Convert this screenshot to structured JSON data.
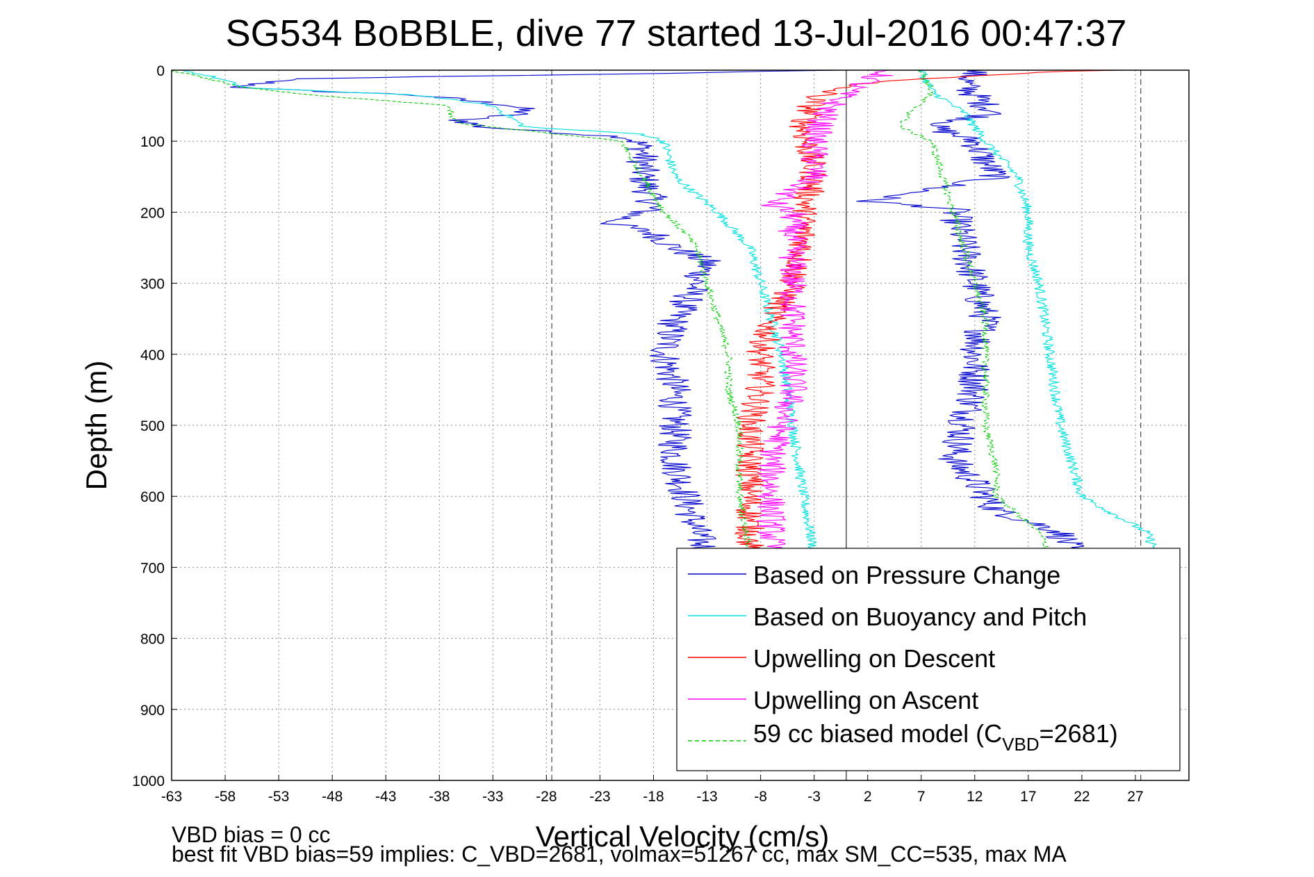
{
  "chart_data": {
    "type": "line",
    "title": "SG534 BoBBLE, dive 77 started 13-Jul-2016 00:47:37",
    "xlabel": "Vertical Velocity (cm/s)",
    "ylabel": "Depth (m)",
    "xlim": [
      -63,
      32
    ],
    "ylim": [
      0,
      1000
    ],
    "y_reversed": true,
    "grid": true,
    "legend_position": "bottom-right",
    "xticks": [
      "-63",
      "-58",
      "-53",
      "-48",
      "-43",
      "-38",
      "-33",
      "-28",
      "-23",
      "-18",
      "-13",
      "-8",
      "-3",
      "2",
      "7",
      "12",
      "17",
      "22",
      "27"
    ],
    "yticks": [
      "0",
      "100",
      "200",
      "300",
      "400",
      "500",
      "600",
      "700",
      "800",
      "900",
      "1000"
    ],
    "reference_lines": [
      {
        "x": 0,
        "style": "solid"
      },
      {
        "x": -27.5,
        "style": "dashed"
      },
      {
        "x": 27.5,
        "style": "dashed"
      }
    ],
    "series": [
      {
        "name": "Based on Pressure Change",
        "color": "#0000cc",
        "style": "solid",
        "descent": [
          [
            0,
            -1
          ],
          [
            5,
            -20
          ],
          [
            12,
            -52
          ],
          [
            25,
            -57
          ],
          [
            35,
            -40
          ],
          [
            50,
            -31
          ],
          [
            60,
            -30
          ],
          [
            70,
            -36
          ],
          [
            80,
            -34
          ],
          [
            95,
            -20
          ],
          [
            110,
            -19
          ],
          [
            150,
            -19
          ],
          [
            190,
            -18
          ],
          [
            200,
            -19
          ],
          [
            215,
            -22
          ],
          [
            230,
            -18
          ],
          [
            250,
            -16
          ],
          [
            270,
            -13
          ],
          [
            300,
            -14
          ],
          [
            350,
            -16
          ],
          [
            400,
            -17
          ],
          [
            450,
            -16
          ],
          [
            500,
            -16
          ],
          [
            550,
            -16
          ],
          [
            600,
            -15
          ],
          [
            650,
            -14
          ],
          [
            680,
            -13
          ]
        ],
        "ascent": [
          [
            0,
            12
          ],
          [
            20,
            11
          ],
          [
            50,
            13
          ],
          [
            60,
            14
          ],
          [
            80,
            8
          ],
          [
            90,
            10
          ],
          [
            100,
            12
          ],
          [
            130,
            13
          ],
          [
            150,
            14
          ],
          [
            185,
            2
          ],
          [
            195,
            10
          ],
          [
            250,
            11
          ],
          [
            300,
            12
          ],
          [
            350,
            13
          ],
          [
            400,
            12
          ],
          [
            450,
            12
          ],
          [
            500,
            11
          ],
          [
            550,
            10
          ],
          [
            580,
            12
          ],
          [
            620,
            14
          ],
          [
            650,
            20
          ],
          [
            680,
            21
          ]
        ]
      },
      {
        "name": "Based on Buoyancy and Pitch",
        "color": "#00e0e0",
        "style": "solid",
        "descent": [
          [
            0,
            -62
          ],
          [
            10,
            -59
          ],
          [
            25,
            -56
          ],
          [
            35,
            -40
          ],
          [
            50,
            -33
          ],
          [
            60,
            -32
          ],
          [
            70,
            -31
          ],
          [
            80,
            -30
          ],
          [
            90,
            -19
          ],
          [
            100,
            -17
          ],
          [
            150,
            -16
          ],
          [
            200,
            -12
          ],
          [
            250,
            -9
          ],
          [
            300,
            -8
          ],
          [
            400,
            -6
          ],
          [
            500,
            -5
          ],
          [
            600,
            -4
          ],
          [
            680,
            -3
          ]
        ],
        "ascent": [
          [
            0,
            7
          ],
          [
            30,
            8
          ],
          [
            60,
            11
          ],
          [
            100,
            13
          ],
          [
            150,
            16
          ],
          [
            200,
            17
          ],
          [
            250,
            17
          ],
          [
            300,
            18
          ],
          [
            400,
            19
          ],
          [
            500,
            20
          ],
          [
            600,
            22
          ],
          [
            650,
            28
          ],
          [
            680,
            29
          ],
          [
            695,
            30
          ]
        ]
      },
      {
        "name": "Upwelling on Descent",
        "color": "#ff0000",
        "style": "solid",
        "descent": [
          [
            0,
            25
          ],
          [
            5,
            15
          ],
          [
            20,
            0
          ],
          [
            40,
            -3
          ],
          [
            80,
            -4
          ],
          [
            150,
            -3
          ],
          [
            200,
            -4
          ],
          [
            250,
            -4
          ],
          [
            300,
            -5
          ],
          [
            350,
            -7
          ],
          [
            400,
            -8
          ],
          [
            450,
            -8
          ],
          [
            500,
            -9
          ],
          [
            600,
            -9
          ],
          [
            680,
            -9
          ]
        ]
      },
      {
        "name": "Upwelling on Ascent",
        "color": "#ff00ff",
        "style": "solid",
        "ascent": [
          [
            0,
            4
          ],
          [
            30,
            0
          ],
          [
            60,
            -2
          ],
          [
            100,
            -3
          ],
          [
            150,
            -3
          ],
          [
            190,
            -7
          ],
          [
            200,
            -5
          ],
          [
            250,
            -5
          ],
          [
            300,
            -5
          ],
          [
            350,
            -5
          ],
          [
            400,
            -5
          ],
          [
            450,
            -5
          ],
          [
            500,
            -6
          ],
          [
            550,
            -7
          ],
          [
            600,
            -7
          ],
          [
            680,
            -7
          ]
        ]
      },
      {
        "name": "59 cc biased model (C",
        "name_sub": "VBD",
        "name_suffix": "=2681)",
        "color": "#00cc00",
        "style": "dashed",
        "descent": [
          [
            0,
            -63
          ],
          [
            25,
            -56
          ],
          [
            35,
            -50
          ],
          [
            50,
            -37
          ],
          [
            65,
            -37
          ],
          [
            75,
            -36
          ],
          [
            80,
            -33
          ],
          [
            95,
            -24
          ],
          [
            100,
            -21
          ],
          [
            150,
            -19
          ],
          [
            200,
            -17
          ],
          [
            230,
            -15
          ],
          [
            250,
            -14
          ],
          [
            300,
            -13
          ],
          [
            350,
            -12
          ],
          [
            400,
            -11
          ],
          [
            450,
            -11
          ],
          [
            500,
            -10
          ],
          [
            550,
            -10
          ],
          [
            600,
            -10
          ],
          [
            680,
            -9
          ]
        ],
        "ascent": [
          [
            0,
            7
          ],
          [
            30,
            8
          ],
          [
            60,
            6
          ],
          [
            80,
            5
          ],
          [
            100,
            8
          ],
          [
            150,
            9
          ],
          [
            200,
            10
          ],
          [
            250,
            11
          ],
          [
            300,
            12
          ],
          [
            350,
            13
          ],
          [
            400,
            13
          ],
          [
            500,
            13
          ],
          [
            560,
            14
          ],
          [
            600,
            14
          ],
          [
            650,
            18
          ],
          [
            680,
            19
          ]
        ]
      }
    ],
    "footer_lines": [
      "VBD bias = 0 cc",
      "best fit VBD bias=59 implies: C_VBD=2681, volmax=51267 cc, max SM_CC=535, max MA"
    ]
  }
}
